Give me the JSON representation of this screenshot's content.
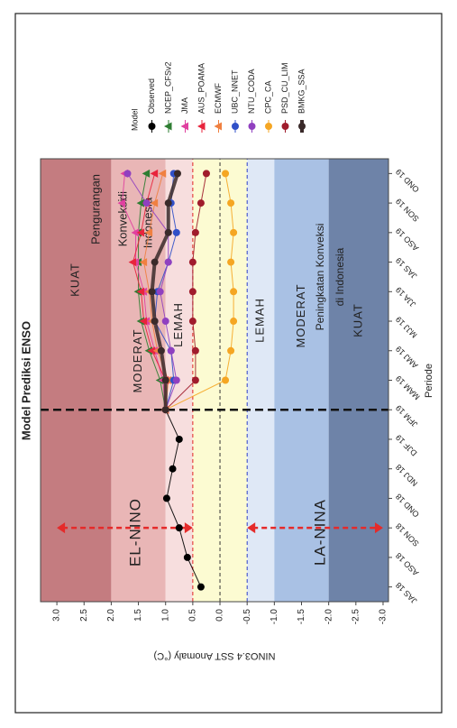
{
  "chart_data": {
    "type": "line",
    "title": "Model Prediksi ENSO",
    "x_label": "Periode",
    "y_label": "NINO3.4 SST Anomaly (°C)",
    "categories": [
      "JAS 18",
      "ASO 18",
      "SON 18",
      "OND 18",
      "NDJ 18",
      "DJF 19",
      "JFM 19",
      "MAM 19",
      "AMJ 19",
      "MJJ 19",
      "JJA 19",
      "JAS 19",
      "ASO 19",
      "SON 19",
      "OND 19"
    ],
    "ylim": [
      -3.1,
      3.3
    ],
    "yticks": [
      {
        "value": 3,
        "label": "3.0"
      },
      2.5,
      {
        "value": 2,
        "label": "2.0"
      },
      1.5,
      {
        "value": 1,
        "label": "1.0"
      },
      0.5,
      {
        "value": 0,
        "label": "0.0"
      },
      -0.5,
      {
        "value": -1,
        "label": "-1.0"
      },
      -1.5,
      {
        "value": -2,
        "label": "-2.0"
      },
      -2.5,
      {
        "value": -3,
        "label": "-3.0"
      }
    ],
    "legend_title": "Model",
    "legend": "right",
    "bands": [
      {
        "label": "KUAT",
        "min": 2,
        "max": null,
        "color": "#c47c80"
      },
      {
        "label": "MODERAT",
        "min": 1,
        "max": 2,
        "color": "#e9b6b6"
      },
      {
        "label": "LEMAH",
        "min": 0.5,
        "max": 1,
        "color": "#f7dede"
      },
      {
        "min": -0.5,
        "max": 0.5,
        "color": "#fcfbd2"
      },
      {
        "label": "LEMAH",
        "min": -1,
        "max": -0.5,
        "color": "#dfe8f6"
      },
      {
        "label": "MODERAT",
        "min": -2,
        "max": -1,
        "color": "#a9c1e4"
      },
      {
        "label": "KUAT",
        "min": null,
        "max": -2,
        "color": "#6e83a8"
      }
    ],
    "reference_lines": [
      {
        "value": 0.5,
        "color": "#e02424"
      },
      {
        "value": 0,
        "color": "#333333"
      },
      {
        "value": -0.5,
        "color": "#2f3fc8"
      }
    ],
    "annotations": [
      {
        "lines": [
          "EL-NINO"
        ]
      },
      {
        "lines": [
          "LA-NINA"
        ]
      },
      {
        "lines": [
          "Pengurangan",
          "Konveksi",
          "di",
          "Indonesia"
        ]
      },
      {
        "lines": [
          "Peningkatan Konveksi",
          "di Indonesia"
        ]
      }
    ],
    "series": [
      {
        "name": "Observed",
        "color": "#000000",
        "marker": "circle",
        "values": [
          0.35,
          0.6,
          0.75,
          0.98,
          0.87,
          0.75,
          1.0,
          null,
          null,
          null,
          null,
          null,
          null,
          null,
          null
        ]
      },
      {
        "name": "NCEP_CFSv2",
        "color": "#2e7d32",
        "marker": "triangle",
        "values": [
          null,
          null,
          null,
          null,
          null,
          null,
          1.0,
          1.1,
          1.3,
          1.45,
          1.5,
          1.5,
          1.5,
          1.45,
          1.35
        ]
      },
      {
        "name": "JMA",
        "color": "#e040a0",
        "marker": "triangle",
        "values": [
          null,
          null,
          null,
          null,
          null,
          null,
          1.0,
          1.05,
          1.2,
          1.35,
          1.4,
          1.55,
          1.55,
          1.8,
          1.75
        ]
      },
      {
        "name": "AUS_POAMA",
        "color": "#e8243c",
        "marker": "triangle",
        "values": [
          null,
          null,
          null,
          null,
          null,
          null,
          1.0,
          1.0,
          1.25,
          1.4,
          1.45,
          1.6,
          1.45,
          1.35,
          1.2
        ]
      },
      {
        "name": "ECMWF",
        "color": "#f08040",
        "marker": "triangle",
        "values": [
          null,
          null,
          null,
          null,
          null,
          null,
          1.0,
          0.95,
          1.15,
          1.25,
          1.3,
          1.4,
          1.3,
          1.2,
          1.05
        ]
      },
      {
        "name": "UBC_NNET",
        "color": "#3050c8",
        "marker": "circle",
        "values": [
          null,
          null,
          null,
          null,
          null,
          null,
          1.0,
          0.85,
          0.9,
          1.2,
          1.15,
          0.95,
          0.8,
          0.9,
          0.85
        ]
      },
      {
        "name": "NTU_CODA",
        "color": "#9040c0",
        "marker": "circle",
        "values": [
          null,
          null,
          null,
          null,
          null,
          null,
          1.0,
          0.8,
          0.9,
          1.0,
          1.1,
          0.95,
          0.95,
          1.35,
          1.7
        ]
      },
      {
        "name": "CPC_CA",
        "color": "#f5a623",
        "marker": "circle",
        "values": [
          null,
          null,
          null,
          null,
          null,
          null,
          1.0,
          -0.1,
          -0.2,
          -0.25,
          -0.25,
          -0.2,
          -0.25,
          -0.2,
          -0.1
        ]
      },
      {
        "name": "PSD_CU_LIM",
        "color": "#a01c2c",
        "marker": "circle",
        "values": [
          null,
          null,
          null,
          null,
          null,
          null,
          1.0,
          0.45,
          0.45,
          0.5,
          0.5,
          0.5,
          0.45,
          0.35,
          0.25
        ]
      },
      {
        "name": "BMKG_SSA",
        "color": "#3a2a2a",
        "marker": "circle",
        "line_width": 4,
        "values": [
          null,
          null,
          null,
          null,
          null,
          null,
          1.0,
          1.0,
          1.08,
          1.2,
          1.25,
          1.2,
          0.95,
          0.95,
          0.78
        ]
      }
    ]
  }
}
